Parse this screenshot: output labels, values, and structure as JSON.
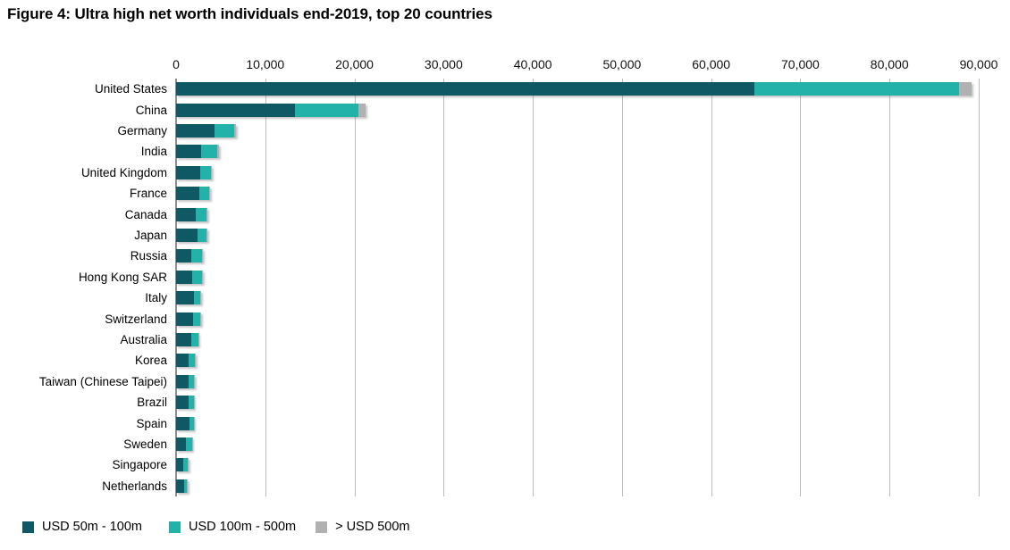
{
  "title": "Figure 4: Ultra high net worth individuals end-2019, top 20 countries",
  "chart_data": {
    "type": "bar",
    "orientation": "horizontal",
    "stacked": true,
    "title": "Figure 4: Ultra high net worth individuals end-2019, top 20 countries",
    "xlabel": "",
    "ylabel": "",
    "xlim": [
      0,
      90000
    ],
    "x_ticks": [
      "0",
      "10,000",
      "20,000",
      "30,000",
      "40,000",
      "50,000",
      "60,000",
      "70,000",
      "80,000",
      "90,000"
    ],
    "grid": true,
    "legend_position": "bottom",
    "axis_colors": {
      "gridline": "#bdbdbd",
      "zero_line": "#8f8f8f"
    },
    "categories": [
      "United States",
      "China",
      "Germany",
      "India",
      "United Kingdom",
      "France",
      "Canada",
      "Japan",
      "Russia",
      "Hong Kong SAR",
      "Italy",
      "Switzerland",
      "Australia",
      "Korea",
      "Taiwan (Chinese Taipei)",
      "Brazil",
      "Spain",
      "Sweden",
      "Singapore",
      "Netherlands"
    ],
    "series": [
      {
        "name": "USD 50m - 100m",
        "color": "#0e5963",
        "values": [
          64800,
          13300,
          4300,
          2800,
          2700,
          2600,
          2250,
          2400,
          1750,
          1800,
          2000,
          1900,
          1750,
          1450,
          1400,
          1450,
          1500,
          1150,
          850,
          900
        ]
      },
      {
        "name": "USD 100m - 500m",
        "color": "#23b2aa",
        "values": [
          23000,
          7100,
          2200,
          1850,
          1200,
          1150,
          1150,
          1000,
          1200,
          1100,
          750,
          830,
          750,
          700,
          650,
          550,
          480,
          620,
          480,
          350
        ]
      },
      {
        "name": "> USD 500m",
        "color": "#b1b1b1",
        "values": [
          1400,
          850,
          200,
          150,
          100,
          100,
          80,
          60,
          100,
          80,
          50,
          60,
          50,
          40,
          40,
          50,
          40,
          40,
          30,
          30
        ]
      }
    ]
  }
}
